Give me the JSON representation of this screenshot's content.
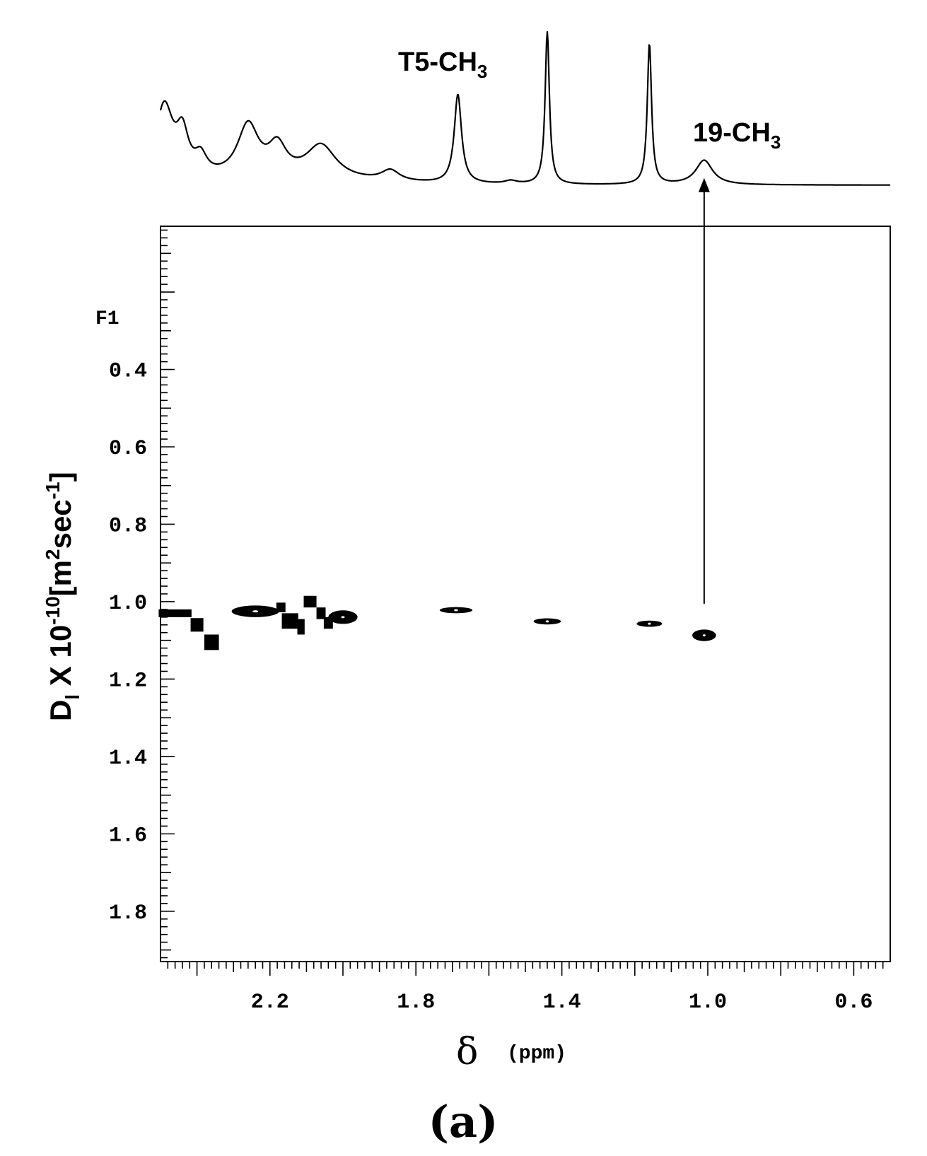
{
  "chart_data": {
    "type": "scatter",
    "panel_label": "(a)",
    "xlabel_symbol": "δ",
    "xlabel_unit": "(ppm)",
    "ylabel": {
      "main": "D",
      "main_sub": "l",
      "times": " X 10",
      "exp": "-10",
      "unit_open": "[m",
      "unit_exp": "2",
      "unit_mid": "sec",
      "unit_exp2": "-1",
      "unit_close": "]"
    },
    "f1_label": "F1",
    "x_axis": {
      "reversed": true,
      "range": [
        2.5,
        0.5
      ],
      "ticks": [
        {
          "value": 2.2,
          "label": "2.2"
        },
        {
          "value": 1.8,
          "label": "1.8"
        },
        {
          "value": 1.4,
          "label": "1.4"
        },
        {
          "value": 1.0,
          "label": "1.0"
        },
        {
          "value": 0.6,
          "label": "0.6"
        }
      ]
    },
    "y_axis": {
      "reversed": true,
      "range": [
        0.03,
        1.93
      ],
      "ticks": [
        {
          "value": 0.4,
          "label": "0.4"
        },
        {
          "value": 0.6,
          "label": "0.6"
        },
        {
          "value": 0.8,
          "label": "0.8"
        },
        {
          "value": 1.0,
          "label": "1.0"
        },
        {
          "value": 1.2,
          "label": "1.2"
        },
        {
          "value": 1.4,
          "label": "1.4"
        },
        {
          "value": 1.6,
          "label": "1.6"
        },
        {
          "value": 1.8,
          "label": "1.8"
        }
      ]
    },
    "grid": false,
    "projection_labels": [
      {
        "main": "T5-CH",
        "sub": "3",
        "ppm": 1.7
      },
      {
        "main": "19-CH",
        "sub": "3",
        "ppm": 1.0
      }
    ],
    "arrow": {
      "ppm": 1.01,
      "from_D": 1.02,
      "to_intensity": 0.13
    },
    "spectrum": {
      "baseline": 0,
      "peaks": [
        {
          "ppm": 2.49,
          "height": 0.48,
          "width": 0.03
        },
        {
          "ppm": 2.44,
          "height": 0.26,
          "width": 0.02
        },
        {
          "ppm": 2.39,
          "height": 0.12,
          "width": 0.02
        },
        {
          "ppm": 2.26,
          "height": 0.34,
          "width": 0.035
        },
        {
          "ppm": 2.18,
          "height": 0.19,
          "width": 0.03
        },
        {
          "ppm": 2.06,
          "height": 0.22,
          "width": 0.05
        },
        {
          "ppm": 1.87,
          "height": 0.07,
          "width": 0.03
        },
        {
          "ppm": 1.685,
          "height": 0.58,
          "width": 0.012
        },
        {
          "ppm": 1.54,
          "height": 0.02,
          "width": 0.02
        },
        {
          "ppm": 1.44,
          "height": 1.0,
          "width": 0.007
        },
        {
          "ppm": 1.16,
          "height": 0.92,
          "width": 0.007
        },
        {
          "ppm": 1.01,
          "height": 0.16,
          "width": 0.028
        }
      ]
    },
    "cross_peaks": [
      {
        "ppm": 2.46,
        "D": 1.03,
        "width": 0.09,
        "height": 0.02,
        "shape": "rect"
      },
      {
        "ppm": 2.4,
        "D": 1.06,
        "width": 0.035,
        "height": 0.035,
        "shape": "rect"
      },
      {
        "ppm": 2.36,
        "D": 1.105,
        "width": 0.04,
        "height": 0.04,
        "shape": "rect"
      },
      {
        "ppm": 2.24,
        "D": 1.025,
        "width": 0.13,
        "height": 0.03,
        "shape": "ellipse"
      },
      {
        "ppm": 2.17,
        "D": 1.015,
        "width": 0.025,
        "height": 0.025,
        "shape": "rect"
      },
      {
        "ppm": 2.145,
        "D": 1.05,
        "width": 0.045,
        "height": 0.04,
        "shape": "rect"
      },
      {
        "ppm": 2.115,
        "D": 1.065,
        "width": 0.02,
        "height": 0.04,
        "shape": "rect"
      },
      {
        "ppm": 2.09,
        "D": 1.0,
        "width": 0.035,
        "height": 0.03,
        "shape": "rect"
      },
      {
        "ppm": 2.06,
        "D": 1.03,
        "width": 0.025,
        "height": 0.03,
        "shape": "rect"
      },
      {
        "ppm": 2.04,
        "D": 1.055,
        "width": 0.025,
        "height": 0.03,
        "shape": "rect"
      },
      {
        "ppm": 2.0,
        "D": 1.04,
        "width": 0.08,
        "height": 0.035,
        "shape": "ellipse"
      },
      {
        "ppm": 1.69,
        "D": 1.022,
        "width": 0.09,
        "height": 0.016,
        "shape": "ellipse"
      },
      {
        "ppm": 1.44,
        "D": 1.051,
        "width": 0.075,
        "height": 0.016,
        "shape": "ellipse"
      },
      {
        "ppm": 1.16,
        "D": 1.057,
        "width": 0.07,
        "height": 0.016,
        "shape": "ellipse"
      },
      {
        "ppm": 1.01,
        "D": 1.087,
        "width": 0.065,
        "height": 0.03,
        "shape": "ellipse"
      }
    ]
  }
}
